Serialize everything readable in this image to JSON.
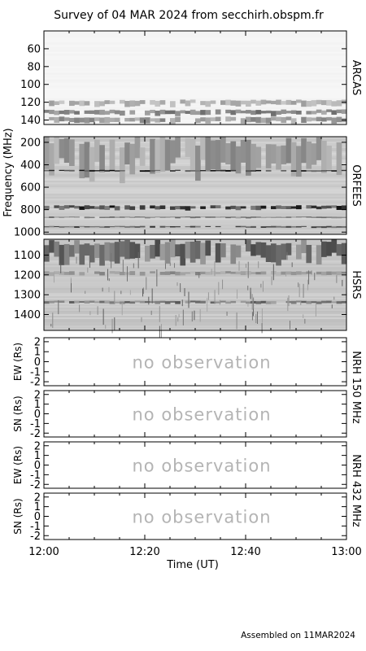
{
  "title": "Survey of 04 MAR 2024 from secchirh.obspm.fr",
  "footer": "Assembled on 11MAR2024",
  "chart_data": {
    "type": "heatmap",
    "title": "Survey of 04 MAR 2024 from secchirh.obspm.fr",
    "xlabel": "Time (UT)",
    "x_ticks": [
      "12:00",
      "12:20",
      "12:40",
      "13:00"
    ],
    "xlim": [
      "12:00",
      "13:00"
    ],
    "panels": [
      {
        "id": "arcas",
        "label": "ARCAS",
        "kind": "spectrogram",
        "ylim": [
          40,
          145
        ],
        "ticks": [
          60,
          80,
          100,
          120,
          140
        ],
        "tick_labels": [
          "60",
          "80",
          "100",
          "120",
          "140"
        ],
        "bands": [
          {
            "from": 117,
            "to": 124,
            "level": 0.35
          },
          {
            "from": 128,
            "to": 134,
            "level": 0.55
          },
          {
            "from": 136,
            "to": 143,
            "level": 0.45
          }
        ]
      },
      {
        "id": "orfees",
        "label": "ORFEES",
        "kind": "spectrogram",
        "ylim": [
          150,
          1020
        ],
        "ticks": [
          200,
          400,
          600,
          800,
          1000
        ],
        "tick_labels": [
          "200",
          "400",
          "600",
          "800",
          "1000"
        ],
        "bands": [
          {
            "from": 150,
            "to": 470,
            "level": 0.45
          },
          {
            "from": 445,
            "to": 460,
            "level": 0.9
          },
          {
            "from": 760,
            "to": 800,
            "level": 0.85
          },
          {
            "from": 860,
            "to": 875,
            "level": 0.6
          },
          {
            "from": 945,
            "to": 960,
            "level": 0.75
          }
        ]
      },
      {
        "id": "hsrs",
        "label": "HSRS",
        "kind": "spectrogram",
        "ylim": [
          1020,
          1480
        ],
        "ticks": [
          1100,
          1200,
          1300,
          1400
        ],
        "tick_labels": [
          "1100",
          "1200",
          "1300",
          "1400"
        ],
        "bands": [
          {
            "from": 1020,
            "to": 1130,
            "level": 0.65
          },
          {
            "from": 1180,
            "to": 1200,
            "level": 0.45
          },
          {
            "from": 1330,
            "to": 1345,
            "level": 0.6
          }
        ]
      },
      {
        "id": "nrh150_ew",
        "ylabel": "EW (Rs)",
        "kind": "empty",
        "ylim": [
          -2.4,
          2.4
        ],
        "ticks": [
          2,
          1,
          0,
          -1,
          -2
        ],
        "tick_labels": [
          "2",
          "1",
          "0",
          "-1",
          "-2"
        ],
        "status": "no observation"
      },
      {
        "id": "nrh150_sn",
        "ylabel": "SN (Rs)",
        "kind": "empty",
        "ylim": [
          -2.4,
          2.4
        ],
        "ticks": [
          2,
          1,
          0,
          -1,
          -2
        ],
        "tick_labels": [
          "2",
          "1",
          "0",
          "-1",
          "-2"
        ],
        "status": "no observation"
      },
      {
        "id": "nrh432_ew",
        "ylabel": "EW (Rs)",
        "kind": "empty",
        "ylim": [
          -2.4,
          2.4
        ],
        "ticks": [
          2,
          1,
          0,
          -1,
          -2
        ],
        "tick_labels": [
          "2",
          "1",
          "0",
          "-1",
          "-2"
        ],
        "status": "no observation"
      },
      {
        "id": "nrh432_sn",
        "ylabel": "SN (Rs)",
        "kind": "empty",
        "ylim": [
          -2.4,
          2.4
        ],
        "ticks": [
          2,
          1,
          0,
          -1,
          -2
        ],
        "tick_labels": [
          "2",
          "1",
          "0",
          "-1",
          "-2"
        ],
        "status": "no observation"
      }
    ],
    "spectrogram_ylabel": "Frequency (MHz)",
    "instrument_labels": [
      {
        "text": "NRH 150 MHz",
        "panels": [
          "nrh150_ew",
          "nrh150_sn"
        ]
      },
      {
        "text": "NRH 432 MHz",
        "panels": [
          "nrh432_ew",
          "nrh432_sn"
        ]
      }
    ]
  }
}
